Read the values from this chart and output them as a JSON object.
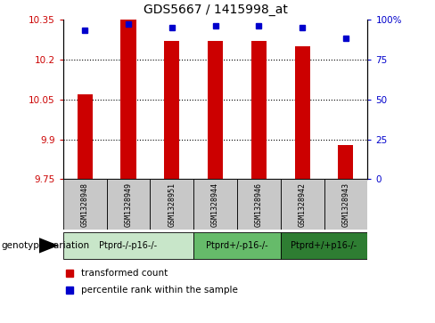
{
  "title": "GDS5667 / 1415998_at",
  "samples": [
    "GSM1328948",
    "GSM1328949",
    "GSM1328951",
    "GSM1328944",
    "GSM1328946",
    "GSM1328942",
    "GSM1328943"
  ],
  "bar_values": [
    10.07,
    10.35,
    10.27,
    10.27,
    10.27,
    10.25,
    9.88
  ],
  "bar_base": 9.75,
  "percentile_values": [
    93,
    97,
    95,
    96,
    96,
    95,
    88
  ],
  "ylim_left": [
    9.75,
    10.35
  ],
  "ylim_right": [
    0,
    100
  ],
  "yticks_left": [
    9.75,
    9.9,
    10.05,
    10.2,
    10.35
  ],
  "yticks_right": [
    0,
    25,
    50,
    75,
    100
  ],
  "ytick_labels_left": [
    "9.75",
    "9.9",
    "10.05",
    "10.2",
    "10.35"
  ],
  "ytick_labels_right": [
    "0",
    "25",
    "50",
    "75",
    "100%"
  ],
  "genotype_groups": [
    {
      "label": "Ptprd-/-p16-/-",
      "start": 0,
      "end": 3,
      "color": "#c8e6c9"
    },
    {
      "label": "Ptprd+/-p16-/-",
      "start": 3,
      "end": 5,
      "color": "#66bb6a"
    },
    {
      "label": "Ptprd+/+p16-/-",
      "start": 5,
      "end": 7,
      "color": "#2e7d32"
    }
  ],
  "bar_color": "#cc0000",
  "dot_color": "#0000cc",
  "bar_width": 0.35,
  "grid_color": "#000000",
  "sample_box_color": "#c8c8c8",
  "genotype_label": "genotype/variation",
  "legend_bar_label": "transformed count",
  "legend_dot_label": "percentile rank within the sample",
  "left_tick_color": "#cc0000",
  "right_tick_color": "#0000cc"
}
